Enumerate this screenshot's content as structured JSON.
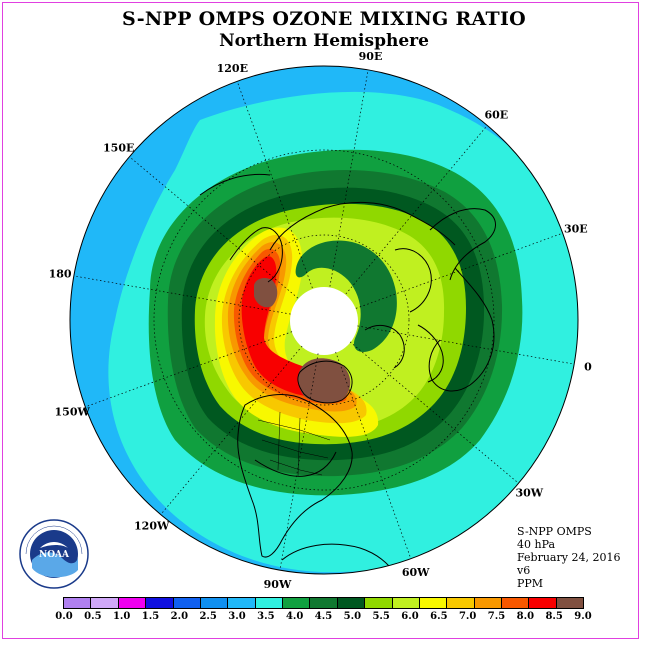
{
  "title": "S-NPP OMPS OZONE MIXING RATIO",
  "subtitle": "Northern Hemisphere",
  "info": {
    "instrument": "S-NPP OMPS",
    "level": "40 hPa",
    "date": "February 24, 2016",
    "version": "v6",
    "units": "PPM"
  },
  "longitude_labels": [
    "90E",
    "60E",
    "30E",
    "0",
    "30W",
    "60W",
    "90W",
    "120W",
    "150W",
    "180",
    "150E",
    "120E"
  ],
  "logo": {
    "icon": "noaa-logo-icon",
    "text": "NOAA"
  },
  "colorbar": {
    "ticks": [
      "0.0",
      "0.5",
      "1.0",
      "1.5",
      "2.0",
      "2.5",
      "3.0",
      "3.5",
      "4.0",
      "4.5",
      "5.0",
      "5.5",
      "6.0",
      "6.5",
      "7.0",
      "7.5",
      "8.0",
      "8.5",
      "9.0"
    ],
    "colors": [
      "#b080f0",
      "#d0a8f8",
      "#f000f0",
      "#1010e0",
      "#1060f0",
      "#1090f0",
      "#20b8f8",
      "#30f0e0",
      "#10a040",
      "#107830",
      "#005820",
      "#90d800",
      "#c0f020",
      "#f8f800",
      "#f8c800",
      "#f89800",
      "#f85800",
      "#f80000",
      "#805040"
    ]
  },
  "map": {
    "projection": "north-polar-stereographic",
    "polar_data_gap": true,
    "ozone_field": {
      "background_ppm": "3.0-3.5",
      "collar_ppm": "4.0-5.0",
      "core_ppm": "5.5-7.0",
      "maxima_ppm": "8.5-9.0",
      "maxima_locations": [
        "Hudson Bay / northern Canada",
        "eastern Siberia / Chukotka"
      ],
      "vortex_min_ppm": "4.5-5.0"
    }
  }
}
